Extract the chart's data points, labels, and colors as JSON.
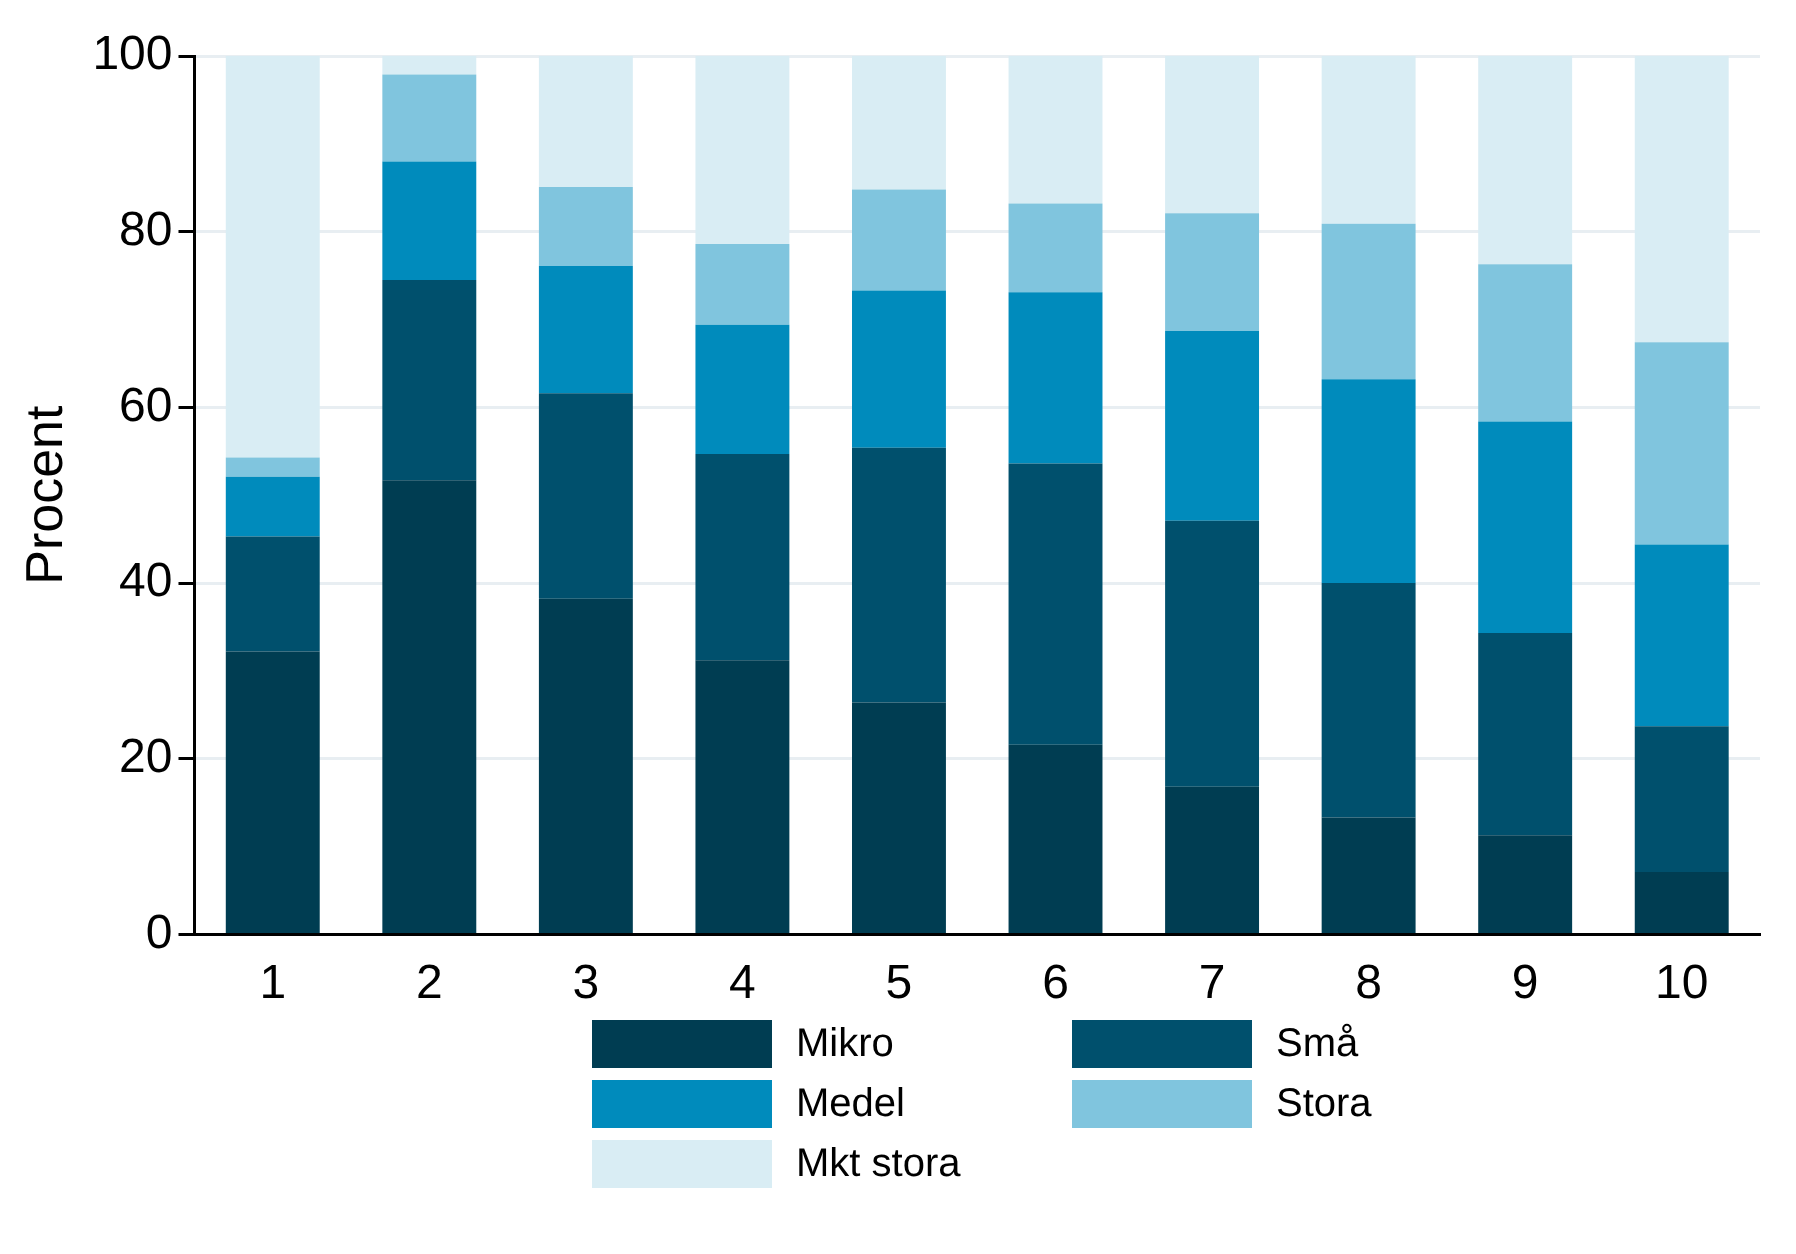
{
  "chart_data": {
    "type": "bar",
    "stacked": true,
    "ylabel": "Procent",
    "categories": [
      "1",
      "2",
      "3",
      "4",
      "5",
      "6",
      "7",
      "8",
      "9",
      "10"
    ],
    "series": [
      {
        "name": "Mikro",
        "color": "#003d52",
        "values": [
          32.2,
          51.7,
          38.2,
          31.2,
          26.4,
          21.6,
          16.8,
          13.3,
          11.3,
          7.1
        ]
      },
      {
        "name": "Små",
        "color": "#00506d",
        "values": [
          13.1,
          22.8,
          23.4,
          23.5,
          29.0,
          32.0,
          30.3,
          26.7,
          23.0,
          16.6
        ]
      },
      {
        "name": "Medel",
        "color": "#008bbc",
        "values": [
          6.8,
          13.5,
          14.5,
          14.7,
          17.9,
          19.5,
          21.6,
          23.2,
          24.1,
          20.7
        ]
      },
      {
        "name": "Stora",
        "color": "#80c5de",
        "values": [
          2.2,
          9.9,
          9.0,
          9.2,
          11.5,
          10.1,
          13.4,
          17.7,
          17.9,
          23.0
        ]
      },
      {
        "name": "Mkt stora",
        "color": "#d9edf4",
        "values": [
          45.7,
          2.1,
          14.9,
          21.4,
          15.2,
          16.8,
          17.9,
          19.1,
          23.7,
          32.6
        ]
      }
    ],
    "ylim": [
      0,
      100
    ],
    "yticks": [
      0,
      20,
      40,
      60,
      80,
      100
    ],
    "grid": "y",
    "legend": "bottom"
  }
}
